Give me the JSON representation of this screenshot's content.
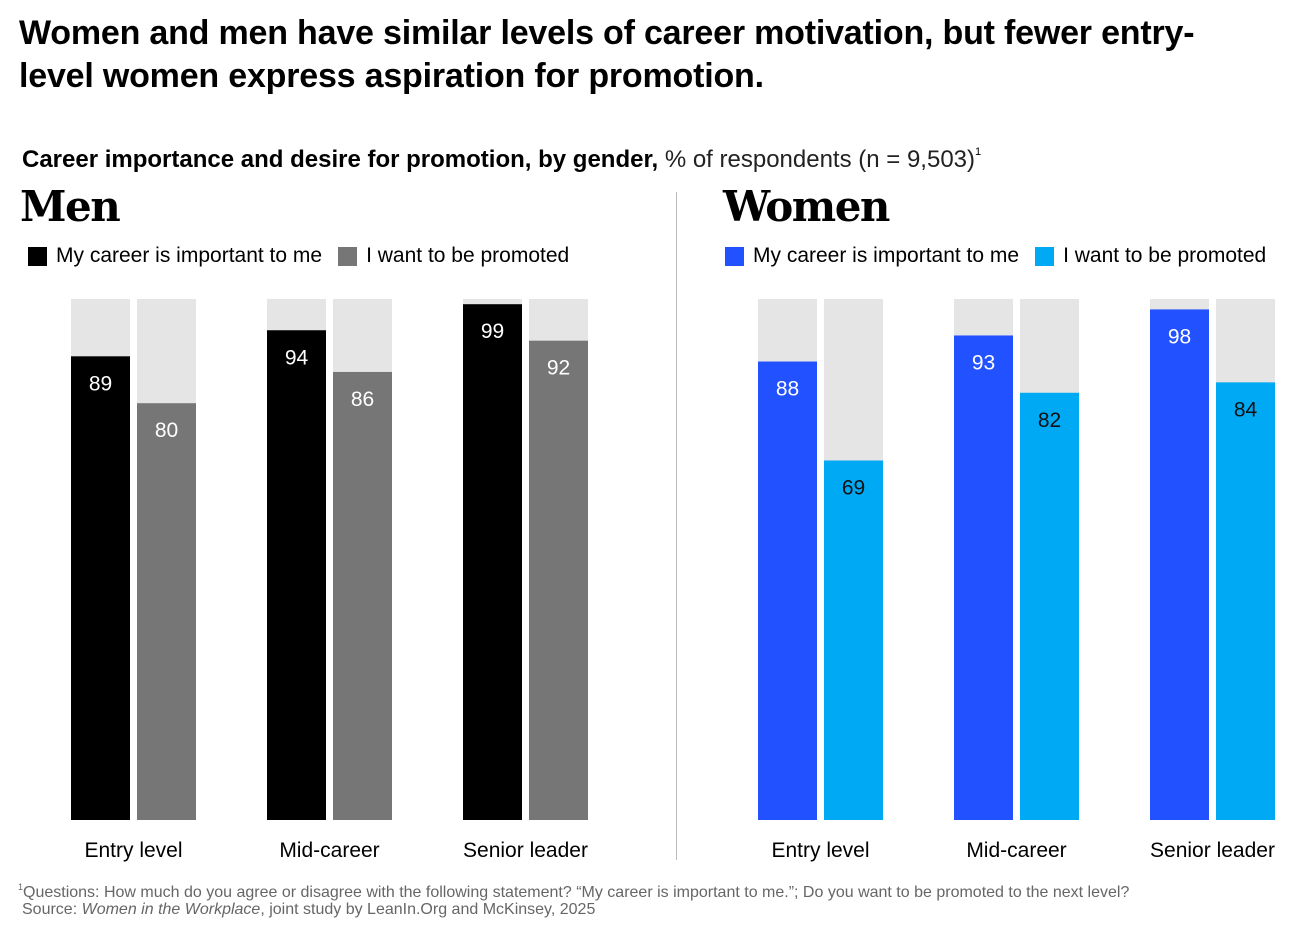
{
  "headline": "Women and men have similar levels of career motivation, but fewer entry-level women express aspiration for promotion.",
  "subtitle": {
    "bold": "Career importance and desire for promotion, by gender,",
    "light": "% of respondents (n = 9,503)",
    "sup": "1"
  },
  "colors": {
    "men_important": "#000000",
    "men_promoted": "#767676",
    "women_important": "#2251ff",
    "women_promoted": "#00a9f4",
    "track": "#e5e5e5"
  },
  "chart_data": [
    {
      "type": "bar",
      "title": "Men",
      "categories": [
        "Entry level",
        "Mid-career",
        "Senior leader"
      ],
      "ylim": [
        0,
        100
      ],
      "series": [
        {
          "name": "My career is important to me",
          "values": [
            89,
            94,
            99
          ]
        },
        {
          "name": "I want to be promoted",
          "values": [
            80,
            86,
            92
          ]
        }
      ]
    },
    {
      "type": "bar",
      "title": "Women",
      "categories": [
        "Entry level",
        "Mid-career",
        "Senior leader"
      ],
      "ylim": [
        0,
        100
      ],
      "series": [
        {
          "name": "My career is important to me",
          "values": [
            88,
            93,
            98
          ]
        },
        {
          "name": "I want to be promoted",
          "values": [
            69,
            82,
            84
          ]
        }
      ]
    }
  ],
  "footnote": {
    "sup": "1",
    "text": "Questions: How much do you agree or disagree with the following statement? “My career is important to me.”; Do you want to be promoted to the next level?"
  },
  "source": {
    "prefix": "Source: ",
    "italic": "Women in the Workplace",
    "suffix": ", joint study by LeanIn.Org and McKinsey, 2025"
  }
}
